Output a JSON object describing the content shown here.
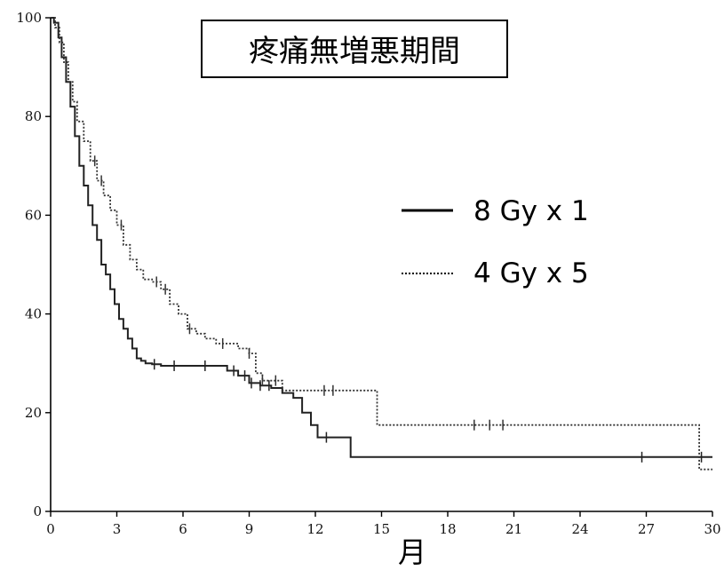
{
  "chart_data": {
    "type": "line",
    "title": "疼痛無増悪期間",
    "xlabel": "月",
    "ylabel": "",
    "xlim": [
      0,
      30
    ],
    "ylim": [
      0,
      100
    ],
    "xticks": [
      "0",
      "3",
      "6",
      "9",
      "12",
      "15",
      "18",
      "21",
      "24",
      "27",
      "30"
    ],
    "yticks": [
      "0",
      "20",
      "40",
      "60",
      "80",
      "100"
    ],
    "grid": false,
    "legend_position": "right",
    "series": [
      {
        "name": "8 Gy x 1",
        "style": "solid",
        "color": "#222222",
        "x": [
          0,
          0.15,
          0.35,
          0.5,
          0.7,
          0.9,
          1.1,
          1.3,
          1.5,
          1.7,
          1.9,
          2.1,
          2.3,
          2.5,
          2.7,
          2.9,
          3.1,
          3.3,
          3.5,
          3.7,
          3.9,
          4.1,
          4.3,
          4.6,
          5.0,
          5.5,
          6.0,
          7.0,
          8.0,
          8.5,
          9.0,
          9.5,
          10.0,
          10.5,
          11.0,
          11.4,
          11.8,
          12.1,
          13.0,
          13.6,
          14.0,
          18.0,
          24.0,
          26.8,
          29.5,
          30.0
        ],
        "y": [
          100,
          99,
          96,
          92,
          87,
          82,
          76,
          70,
          66,
          62,
          58,
          55,
          50,
          48,
          45,
          42,
          39,
          37,
          35,
          33,
          31,
          30.5,
          30,
          29.8,
          29.5,
          29.5,
          29.5,
          29.5,
          28.5,
          27.5,
          26,
          25.5,
          25,
          24,
          23,
          20,
          17.5,
          15,
          15,
          11,
          11,
          11,
          11,
          11,
          11,
          11
        ],
        "censor_x": [
          4.7,
          5.6,
          7.0,
          8.3,
          8.8,
          9.1,
          9.5,
          9.9,
          12.5,
          26.8,
          29.5
        ]
      },
      {
        "name": "4 Gy x 5",
        "style": "dotted",
        "color": "#333333",
        "x": [
          0,
          0.2,
          0.4,
          0.6,
          0.8,
          1.0,
          1.2,
          1.5,
          1.8,
          2.1,
          2.4,
          2.7,
          3.0,
          3.3,
          3.6,
          3.9,
          4.2,
          4.6,
          5.0,
          5.4,
          5.8,
          6.2,
          6.6,
          7.0,
          7.5,
          8.0,
          8.5,
          9.0,
          9.3,
          9.6,
          10.0,
          10.5,
          11.0,
          11.5,
          12.0,
          12.5,
          13.0,
          14.0,
          14.7,
          14.8,
          18.0,
          20.0,
          24.0,
          29.3,
          29.4,
          30.0
        ],
        "y": [
          100,
          98,
          95,
          91,
          87,
          83,
          79,
          75,
          71,
          67,
          64,
          61,
          58,
          54,
          51,
          49,
          47,
          46.5,
          45,
          42,
          40,
          37,
          36,
          35,
          34,
          34,
          33,
          32,
          28,
          26.5,
          26.5,
          24.5,
          24.5,
          24.5,
          24.5,
          24.5,
          24.5,
          24.5,
          24.5,
          17.5,
          17.5,
          17.5,
          17.5,
          17.5,
          8.5,
          8.5
        ],
        "censor_x": [
          2.0,
          2.3,
          3.2,
          4.8,
          5.2,
          6.3,
          7.8,
          9.0,
          9.6,
          10.2,
          12.4,
          12.8,
          19.2,
          19.9,
          20.5
        ]
      }
    ]
  }
}
